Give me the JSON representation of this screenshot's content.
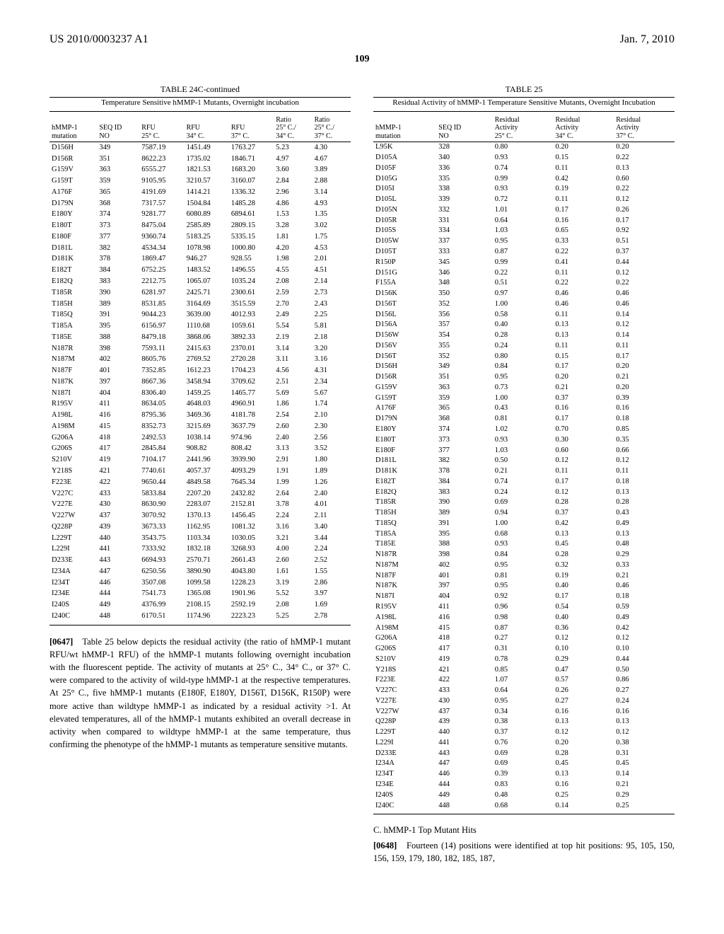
{
  "header": {
    "pub": "US 2010/0003237 A1",
    "date": "Jan. 7, 2010"
  },
  "page_number": "109",
  "table24c": {
    "title": "TABLE 24C-continued",
    "subtitle": "Temperature Sensitive hMMP-1 Mutants, Overnight incubation",
    "headers": {
      "mutation": "hMMP-1\nmutation",
      "seqid": "SEQ ID\nNO",
      "rfu25": "RFU\n25° C.",
      "rfu34": "RFU\n34° C.",
      "rfu37": "RFU\n37° C.",
      "ratio34": "Ratio\n25° C./\n34° C.",
      "ratio37": "Ratio\n25° C./\n37° C."
    },
    "rows": [
      [
        "D156H",
        "349",
        "7587.19",
        "1451.49",
        "1763.27",
        "5.23",
        "4.30"
      ],
      [
        "D156R",
        "351",
        "8622.23",
        "1735.02",
        "1846.71",
        "4.97",
        "4.67"
      ],
      [
        "G159V",
        "363",
        "6555.27",
        "1821.53",
        "1683.20",
        "3.60",
        "3.89"
      ],
      [
        "G159T",
        "359",
        "9105.95",
        "3210.57",
        "3160.07",
        "2.84",
        "2.88"
      ],
      [
        "A176F",
        "365",
        "4191.69",
        "1414.21",
        "1336.32",
        "2.96",
        "3.14"
      ],
      [
        "D179N",
        "368",
        "7317.57",
        "1504.84",
        "1485.28",
        "4.86",
        "4.93"
      ],
      [
        "E180Y",
        "374",
        "9281.77",
        "6080.89",
        "6894.61",
        "1.53",
        "1.35"
      ],
      [
        "E180T",
        "373",
        "8475.04",
        "2585.89",
        "2809.15",
        "3.28",
        "3.02"
      ],
      [
        "E180F",
        "377",
        "9360.74",
        "5183.25",
        "5335.15",
        "1.81",
        "1.75"
      ],
      [
        "D181L",
        "382",
        "4534.34",
        "1078.98",
        "1000.80",
        "4.20",
        "4.53"
      ],
      [
        "D181K",
        "378",
        "1869.47",
        "946.27",
        "928.55",
        "1.98",
        "2.01"
      ],
      [
        "E182T",
        "384",
        "6752.25",
        "1483.52",
        "1496.55",
        "4.55",
        "4.51"
      ],
      [
        "E182Q",
        "383",
        "2212.75",
        "1065.07",
        "1035.24",
        "2.08",
        "2.14"
      ],
      [
        "T185R",
        "390",
        "6281.97",
        "2425.71",
        "2300.61",
        "2.59",
        "2.73"
      ],
      [
        "T185H",
        "389",
        "8531.85",
        "3164.69",
        "3515.59",
        "2.70",
        "2.43"
      ],
      [
        "T185Q",
        "391",
        "9044.23",
        "3639.00",
        "4012.93",
        "2.49",
        "2.25"
      ],
      [
        "T185A",
        "395",
        "6156.97",
        "1110.68",
        "1059.61",
        "5.54",
        "5.81"
      ],
      [
        "T185E",
        "388",
        "8479.18",
        "3868.06",
        "3892.33",
        "2.19",
        "2.18"
      ],
      [
        "N187R",
        "398",
        "7593.11",
        "2415.63",
        "2370.01",
        "3.14",
        "3.20"
      ],
      [
        "N187M",
        "402",
        "8605.76",
        "2769.52",
        "2720.28",
        "3.11",
        "3.16"
      ],
      [
        "N187F",
        "401",
        "7352.85",
        "1612.23",
        "1704.23",
        "4.56",
        "4.31"
      ],
      [
        "N187K",
        "397",
        "8667.36",
        "3458.94",
        "3709.62",
        "2.51",
        "2.34"
      ],
      [
        "N187I",
        "404",
        "8306.40",
        "1459.25",
        "1465.77",
        "5.69",
        "5.67"
      ],
      [
        "R195V",
        "411",
        "8634.05",
        "4648.03",
        "4960.91",
        "1.86",
        "1.74"
      ],
      [
        "A198L",
        "416",
        "8795.36",
        "3469.36",
        "4181.78",
        "2.54",
        "2.10"
      ],
      [
        "A198M",
        "415",
        "8352.73",
        "3215.69",
        "3637.79",
        "2.60",
        "2.30"
      ],
      [
        "G206A",
        "418",
        "2492.53",
        "1038.14",
        "974.96",
        "2.40",
        "2.56"
      ],
      [
        "G206S",
        "417",
        "2845.84",
        "908.82",
        "808.42",
        "3.13",
        "3.52"
      ],
      [
        "S210V",
        "419",
        "7104.17",
        "2441.96",
        "3939.90",
        "2.91",
        "1.80"
      ],
      [
        "Y218S",
        "421",
        "7740.61",
        "4057.37",
        "4093.29",
        "1.91",
        "1.89"
      ],
      [
        "F223E",
        "422",
        "9650.44",
        "4849.58",
        "7645.34",
        "1.99",
        "1.26"
      ],
      [
        "V227C",
        "433",
        "5833.84",
        "2207.20",
        "2432.82",
        "2.64",
        "2.40"
      ],
      [
        "V227E",
        "430",
        "8630.90",
        "2283.07",
        "2152.81",
        "3.78",
        "4.01"
      ],
      [
        "V227W",
        "437",
        "3070.92",
        "1370.13",
        "1456.45",
        "2.24",
        "2.11"
      ],
      [
        "Q228P",
        "439",
        "3673.33",
        "1162.95",
        "1081.32",
        "3.16",
        "3.40"
      ],
      [
        "L229T",
        "440",
        "3543.75",
        "1103.34",
        "1030.05",
        "3.21",
        "3.44"
      ],
      [
        "L229I",
        "441",
        "7333.92",
        "1832.18",
        "3268.93",
        "4.00",
        "2.24"
      ],
      [
        "D233E",
        "443",
        "6694.93",
        "2570.71",
        "2661.43",
        "2.60",
        "2.52"
      ],
      [
        "I234A",
        "447",
        "6250.56",
        "3890.90",
        "4043.80",
        "1.61",
        "1.55"
      ],
      [
        "I234T",
        "446",
        "3507.08",
        "1099.58",
        "1228.23",
        "3.19",
        "2.86"
      ],
      [
        "I234E",
        "444",
        "7541.73",
        "1365.08",
        "1901.96",
        "5.52",
        "3.97"
      ],
      [
        "I240S",
        "449",
        "4376.99",
        "2108.15",
        "2592.19",
        "2.08",
        "1.69"
      ],
      [
        "I240C",
        "448",
        "6170.51",
        "1174.96",
        "2223.23",
        "5.25",
        "2.78"
      ]
    ]
  },
  "para0647": {
    "num": "[0647]",
    "text": "Table 25 below depicts the residual activity (the ratio of hMMP-1 mutant RFU/wt hMMP-1 RFU) of the hMMP-1 mutants following overnight incubation with the fluorescent peptide. The activity of mutants at 25° C., 34° C., or 37° C. were compared to the activity of wild-type hMMP-1 at the respective temperatures. At 25° C., five hMMP-1 mutants (E180F, E180Y, D156T, D156K, R150P) were more active than wildtype hMMP-1 as indicated by a residual activity >1. At elevated temperatures, all of the hMMP-1 mutants exhibited an overall decrease in activity when compared to wildtype hMMP-1 at the same temperature, thus confirming the phenotype of the hMMP-1 mutants as temperature sensitive mutants."
  },
  "table25": {
    "title": "TABLE 25",
    "subtitle": "Residual Activity of hMMP-1 Temperature Sensitive Mutants, Overnight Incubation",
    "headers": {
      "mutation": "hMMP-1\nmutation",
      "seqid": "SEQ ID\nNO",
      "ra25": "Residual\nActivity\n25° C.",
      "ra34": "Residual\nActivity\n34° C.",
      "ra37": "Residual\nActivity\n37° C."
    },
    "rows": [
      [
        "L95K",
        "328",
        "0.80",
        "0.20",
        "0.20"
      ],
      [
        "D105A",
        "340",
        "0.93",
        "0.15",
        "0.22"
      ],
      [
        "D105F",
        "336",
        "0.74",
        "0.11",
        "0.13"
      ],
      [
        "D105G",
        "335",
        "0.99",
        "0.42",
        "0.60"
      ],
      [
        "D105I",
        "338",
        "0.93",
        "0.19",
        "0.22"
      ],
      [
        "D105L",
        "339",
        "0.72",
        "0.11",
        "0.12"
      ],
      [
        "D105N",
        "332",
        "1.01",
        "0.17",
        "0.26"
      ],
      [
        "D105R",
        "331",
        "0.64",
        "0.16",
        "0.17"
      ],
      [
        "D105S",
        "334",
        "1.03",
        "0.65",
        "0.92"
      ],
      [
        "D105W",
        "337",
        "0.95",
        "0.33",
        "0.51"
      ],
      [
        "D105T",
        "333",
        "0.87",
        "0.22",
        "0.37"
      ],
      [
        "R150P",
        "345",
        "0.99",
        "0.41",
        "0.44"
      ],
      [
        "D151G",
        "346",
        "0.22",
        "0.11",
        "0.12"
      ],
      [
        "F155A",
        "348",
        "0.51",
        "0.22",
        "0.22"
      ],
      [
        "D156K",
        "350",
        "0.97",
        "0.46",
        "0.46"
      ],
      [
        "D156T",
        "352",
        "1.00",
        "0.46",
        "0.46"
      ],
      [
        "D156L",
        "356",
        "0.58",
        "0.11",
        "0.14"
      ],
      [
        "D156A",
        "357",
        "0.40",
        "0.13",
        "0.12"
      ],
      [
        "D156W",
        "354",
        "0.28",
        "0.13",
        "0.14"
      ],
      [
        "D156V",
        "355",
        "0.24",
        "0.11",
        "0.11"
      ],
      [
        "D156T",
        "352",
        "0.80",
        "0.15",
        "0.17"
      ],
      [
        "D156H",
        "349",
        "0.84",
        "0.17",
        "0.20"
      ],
      [
        "D156R",
        "351",
        "0.95",
        "0.20",
        "0.21"
      ],
      [
        "G159V",
        "363",
        "0.73",
        "0.21",
        "0.20"
      ],
      [
        "G159T",
        "359",
        "1.00",
        "0.37",
        "0.39"
      ],
      [
        "A176F",
        "365",
        "0.43",
        "0.16",
        "0.16"
      ],
      [
        "D179N",
        "368",
        "0.81",
        "0.17",
        "0.18"
      ],
      [
        "E180Y",
        "374",
        "1.02",
        "0.70",
        "0.85"
      ],
      [
        "E180T",
        "373",
        "0.93",
        "0.30",
        "0.35"
      ],
      [
        "E180F",
        "377",
        "1.03",
        "0.60",
        "0.66"
      ],
      [
        "D181L",
        "382",
        "0.50",
        "0.12",
        "0.12"
      ],
      [
        "D181K",
        "378",
        "0.21",
        "0.11",
        "0.11"
      ],
      [
        "E182T",
        "384",
        "0.74",
        "0.17",
        "0.18"
      ],
      [
        "E182Q",
        "383",
        "0.24",
        "0.12",
        "0.13"
      ],
      [
        "T185R",
        "390",
        "0.69",
        "0.28",
        "0.28"
      ],
      [
        "T185H",
        "389",
        "0.94",
        "0.37",
        "0.43"
      ],
      [
        "T185Q",
        "391",
        "1.00",
        "0.42",
        "0.49"
      ],
      [
        "T185A",
        "395",
        "0.68",
        "0.13",
        "0.13"
      ],
      [
        "T185E",
        "388",
        "0.93",
        "0.45",
        "0.48"
      ],
      [
        "N187R",
        "398",
        "0.84",
        "0.28",
        "0.29"
      ],
      [
        "N187M",
        "402",
        "0.95",
        "0.32",
        "0.33"
      ],
      [
        "N187F",
        "401",
        "0.81",
        "0.19",
        "0.21"
      ],
      [
        "N187K",
        "397",
        "0.95",
        "0.40",
        "0.46"
      ],
      [
        "N187I",
        "404",
        "0.92",
        "0.17",
        "0.18"
      ],
      [
        "R195V",
        "411",
        "0.96",
        "0.54",
        "0.59"
      ],
      [
        "A198L",
        "416",
        "0.98",
        "0.40",
        "0.49"
      ],
      [
        "A198M",
        "415",
        "0.87",
        "0.36",
        "0.42"
      ],
      [
        "G206A",
        "418",
        "0.27",
        "0.12",
        "0.12"
      ],
      [
        "G206S",
        "417",
        "0.31",
        "0.10",
        "0.10"
      ],
      [
        "S210V",
        "419",
        "0.78",
        "0.29",
        "0.44"
      ],
      [
        "Y218S",
        "421",
        "0.85",
        "0.47",
        "0.50"
      ],
      [
        "F223E",
        "422",
        "1.07",
        "0.57",
        "0.86"
      ],
      [
        "V227C",
        "433",
        "0.64",
        "0.26",
        "0.27"
      ],
      [
        "V227E",
        "430",
        "0.95",
        "0.27",
        "0.24"
      ],
      [
        "V227W",
        "437",
        "0.34",
        "0.16",
        "0.16"
      ],
      [
        "Q228P",
        "439",
        "0.38",
        "0.13",
        "0.13"
      ],
      [
        "L229T",
        "440",
        "0.37",
        "0.12",
        "0.12"
      ],
      [
        "L229I",
        "441",
        "0.76",
        "0.20",
        "0.38"
      ],
      [
        "D233E",
        "443",
        "0.69",
        "0.28",
        "0.31"
      ],
      [
        "I234A",
        "447",
        "0.69",
        "0.45",
        "0.45"
      ],
      [
        "I234T",
        "446",
        "0.39",
        "0.13",
        "0.14"
      ],
      [
        "I234E",
        "444",
        "0.83",
        "0.16",
        "0.21"
      ],
      [
        "I240S",
        "449",
        "0.48",
        "0.25",
        "0.29"
      ],
      [
        "I240C",
        "448",
        "0.68",
        "0.14",
        "0.25"
      ]
    ]
  },
  "section_c": {
    "label": "C. hMMP-1 Top Mutant Hits"
  },
  "para0648": {
    "num": "[0648]",
    "text": "Fourteen (14) positions were identified at top hit positions: 95, 105, 150, 156, 159, 179, 180, 182, 185, 187,"
  }
}
